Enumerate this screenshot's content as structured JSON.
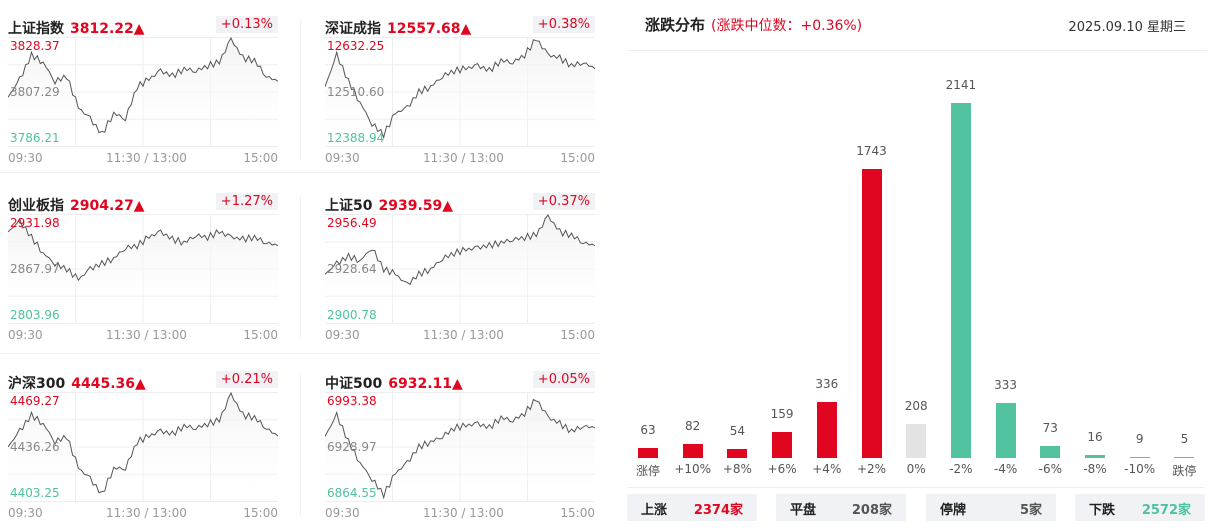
{
  "indices": [
    {
      "name": "上证指数",
      "price": "3812.22▲",
      "change": "+0.13%",
      "high": "3828.37",
      "mid": "3807.29",
      "low": "3786.21",
      "values": [
        3805.2,
        3812.3,
        3822.0,
        3819.1,
        3811.5,
        3813.6,
        3801.0,
        3796.7,
        3790.4,
        3798.9,
        3796.7,
        3809.4,
        3812.3,
        3815.7,
        3813.6,
        3816.6,
        3815.7,
        3817.8,
        3819.1,
        3828.4,
        3820.8,
        3819.9,
        3813.6,
        3811.5
      ]
    },
    {
      "name": "深证成指",
      "price": "12557.68▲",
      "change": "+0.38%",
      "high": "12632.25",
      "mid": "12510.60",
      "low": "12388.94",
      "values": [
        12522.8,
        12595.8,
        12534.9,
        12486.3,
        12437.6,
        12413.3,
        12461.9,
        12474.1,
        12510.6,
        12522.8,
        12547.1,
        12559.3,
        12564.1,
        12571.4,
        12559.3,
        12583.6,
        12578.7,
        12595.8,
        12632.2,
        12595.8,
        12588.4,
        12571.4,
        12578.7,
        12564.1
      ]
    },
    {
      "name": "创业板指",
      "price": "2904.27▲",
      "change": "+1.27%",
      "high": "2931.98",
      "mid": "2867.97",
      "low": "2803.96",
      "values": [
        2912.8,
        2925.6,
        2906.4,
        2887.2,
        2874.4,
        2868.0,
        2855.2,
        2868.0,
        2874.4,
        2880.8,
        2893.6,
        2896.1,
        2906.4,
        2912.8,
        2903.8,
        2900.0,
        2908.9,
        2906.4,
        2912.8,
        2906.4,
        2903.8,
        2906.4,
        2900.0,
        2896.1
      ]
    },
    {
      "name": "上证50",
      "price": "2939.59▲",
      "change": "+0.37%",
      "high": "2956.49",
      "mid": "2928.64",
      "low": "2900.78",
      "values": [
        2925.9,
        2931.4,
        2935.3,
        2933.1,
        2939.8,
        2928.6,
        2925.9,
        2920.3,
        2925.9,
        2928.6,
        2934.2,
        2937.0,
        2938.7,
        2939.8,
        2940.9,
        2942.6,
        2944.2,
        2945.3,
        2946.5,
        2956.5,
        2948.1,
        2946.5,
        2942.6,
        2940.9
      ]
    },
    {
      "name": "沪深300",
      "price": "4445.36▲",
      "change": "+0.21%",
      "high": "4469.27",
      "mid": "4436.26",
      "low": "4403.25",
      "values": [
        4436.3,
        4446.2,
        4456.1,
        4450.8,
        4439.6,
        4442.9,
        4423.1,
        4416.5,
        4406.6,
        4423.1,
        4423.1,
        4439.6,
        4442.9,
        4446.2,
        4444.2,
        4449.5,
        4448.1,
        4450.8,
        4452.8,
        4469.3,
        4456.1,
        4454.7,
        4448.1,
        4442.9
      ]
    },
    {
      "name": "中证500",
      "price": "6932.11▲",
      "change": "+0.05%",
      "high": "6993.38",
      "mid": "6928.97",
      "low": "6864.55",
      "values": [
        6941.9,
        6967.6,
        6935.4,
        6909.6,
        6890.3,
        6871.0,
        6896.8,
        6909.6,
        6929.0,
        6935.4,
        6941.9,
        6952.2,
        6954.7,
        6957.3,
        6952.2,
        6965.0,
        6961.2,
        6970.2,
        6986.9,
        6965.0,
        6957.3,
        6948.3,
        6954.7,
        6952.2
      ]
    }
  ],
  "time_labels": {
    "start": "09:30",
    "mid": "11:30 / 13:00",
    "end": "15:00"
  },
  "distribution": {
    "title": "涨跌分布",
    "median": "(涨跌中位数：+0.36%)",
    "date": "2025.09.10 星期三",
    "chart_data": {
      "type": "bar",
      "categories": [
        "涨停",
        "+10%",
        "+8%",
        "+6%",
        "+4%",
        "+2%",
        "0%",
        "-2%",
        "-4%",
        "-6%",
        "-8%",
        "-10%",
        "跌停"
      ],
      "values": [
        63,
        82,
        54,
        159,
        336,
        1743,
        208,
        2141,
        333,
        73,
        16,
        9,
        5
      ],
      "colors": [
        "#e0061f",
        "#e0061f",
        "#e0061f",
        "#e0061f",
        "#e0061f",
        "#e0061f",
        "#e3e3e3",
        "#52c2a0",
        "#52c2a0",
        "#52c2a0",
        "#52c2a0",
        "#52c2a0",
        "#52c2a0"
      ]
    },
    "summary": [
      {
        "label": "上涨",
        "value": "2374家",
        "color": "#e0061f"
      },
      {
        "label": "平盘",
        "value": "208家",
        "color": "#555555"
      },
      {
        "label": "停牌",
        "value": "5家",
        "color": "#555555"
      },
      {
        "label": "下跌",
        "value": "2572家",
        "color": "#4fc2a0"
      }
    ]
  }
}
